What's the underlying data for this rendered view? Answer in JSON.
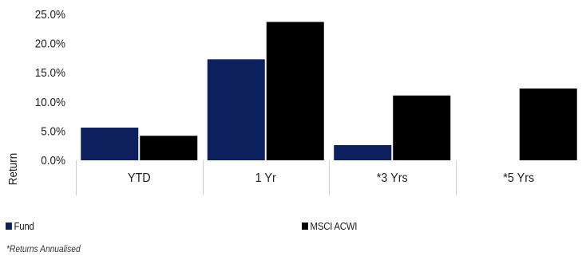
{
  "chart_data": {
    "type": "bar",
    "title": "",
    "xlabel": "",
    "ylabel": "Return",
    "ylim": [
      0,
      25
    ],
    "yticks": [
      "0.0%",
      "5.0%",
      "10.0%",
      "15.0%",
      "20.0%",
      "25.0%"
    ],
    "categories": [
      "YTD",
      "1 Yr",
      "*3 Yrs",
      "*5 Yrs"
    ],
    "series": [
      {
        "name": "Fund",
        "values": [
          5.6,
          17.3,
          2.6,
          null
        ]
      },
      {
        "name": "MSCI ACWI",
        "values": [
          4.2,
          23.7,
          11.1,
          12.3
        ]
      }
    ],
    "grid": false,
    "legend_position": "bottom"
  },
  "colors": {
    "fund": "#0d1f5c",
    "benchmark": "#000000",
    "separator": "#cccccc"
  },
  "footnote": "*Returns Annualised"
}
